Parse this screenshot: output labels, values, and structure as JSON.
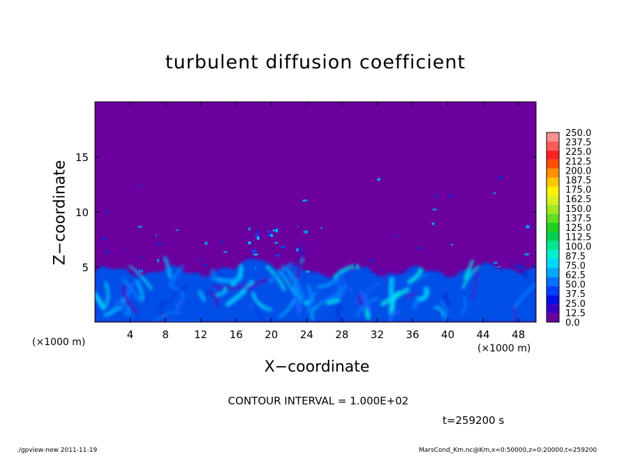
{
  "chart_data": {
    "type": "heatmap",
    "title": "turbulent diffusion coefficient",
    "xlabel": "X−coordinate",
    "ylabel": "Z−coordinate",
    "x_unit": "(×1000 m)",
    "x_ticks": [
      "4",
      "8",
      "12",
      "16",
      "20",
      "24",
      "28",
      "32",
      "36",
      "40",
      "44",
      "48"
    ],
    "y_ticks": [
      "5",
      "10",
      "15"
    ],
    "xlim": [
      0,
      50
    ],
    "ylim": [
      0,
      20
    ],
    "colorbar": {
      "levels": [
        "0.0",
        "12.5",
        "25.0",
        "37.5",
        "50.0",
        "62.5",
        "75.0",
        "87.5",
        "100.0",
        "112.5",
        "125.0",
        "137.5",
        "150.0",
        "162.5",
        "175.0",
        "187.5",
        "200.0",
        "212.5",
        "225.0",
        "237.5",
        "250.0"
      ],
      "colors": [
        "#6a009e",
        "#3600c6",
        "#0010e6",
        "#0040ff",
        "#0070ff",
        "#00a8ff",
        "#00d8ff",
        "#00f0d0",
        "#00e690",
        "#00d050",
        "#20d020",
        "#60e020",
        "#a0e820",
        "#d8f020",
        "#fff000",
        "#ffc800",
        "#ff9000",
        "#ff5000",
        "#ff2020",
        "#ff5a5a",
        "#ff9090"
      ]
    },
    "background_color": "#6a009e",
    "contour_interval": "CONTOUR INTERVAL = 1.000E+02",
    "time": "t=259200 s"
  },
  "footer": {
    "left": "./gpview-new   2011-11-19",
    "right": "MarsCond_Km.nc@Km,x=0:50000,z=0:20000,t=259200"
  }
}
